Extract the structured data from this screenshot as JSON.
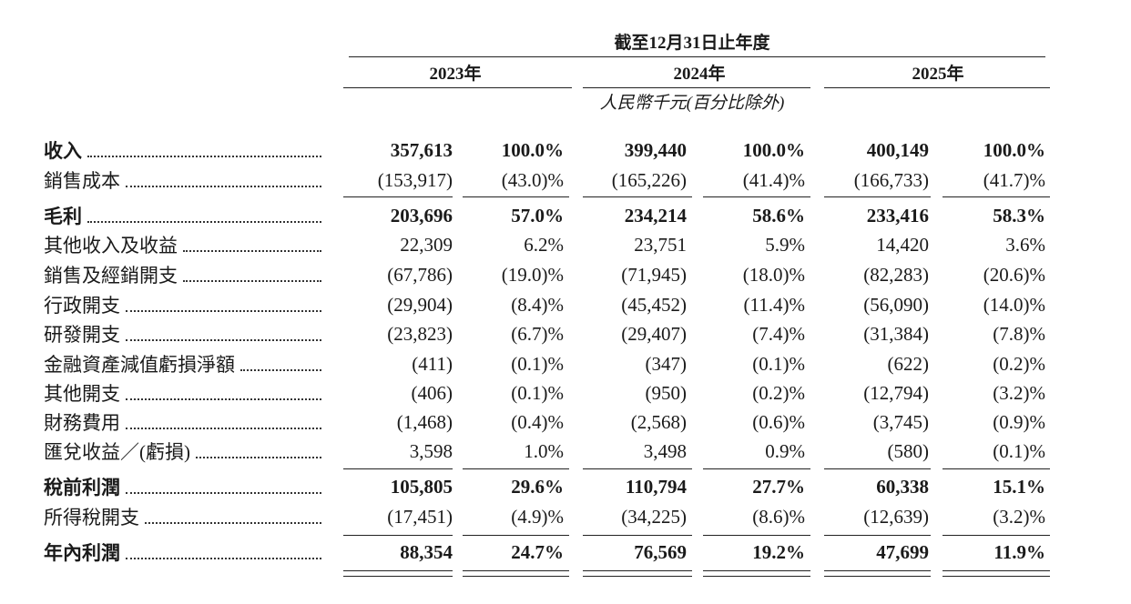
{
  "header": {
    "period": "截至12月31日止年度",
    "years": [
      "2023年",
      "2024年",
      "2025年"
    ],
    "unit": "人民幣千元(百分比除外)"
  },
  "table": {
    "rows": [
      [
        "收入",
        "357,613",
        "100.0%",
        "399,440",
        "100.0%",
        "400,149",
        "100.0%"
      ],
      [
        "銷售成本",
        "(153,917)",
        "(43.0)%",
        "(165,226)",
        "(41.4)%",
        "(166,733)",
        "(41.7)%"
      ],
      [
        "毛利",
        "203,696",
        "57.0%",
        "234,214",
        "58.6%",
        "233,416",
        "58.3%"
      ],
      [
        "其他收入及收益",
        "22,309",
        "6.2%",
        "23,751",
        "5.9%",
        "14,420",
        "3.6%"
      ],
      [
        "銷售及經銷開支",
        "(67,786)",
        "(19.0)%",
        "(71,945)",
        "(18.0)%",
        "(82,283)",
        "(20.6)%"
      ],
      [
        "行政開支",
        "(29,904)",
        "(8.4)%",
        "(45,452)",
        "(11.4)%",
        "(56,090)",
        "(14.0)%"
      ],
      [
        "研發開支",
        "(23,823)",
        "(6.7)%",
        "(29,407)",
        "(7.4)%",
        "(31,384)",
        "(7.8)%"
      ],
      [
        "金融資產減值虧損淨額",
        "(411)",
        "(0.1)%",
        "(347)",
        "(0.1)%",
        "(622)",
        "(0.2)%"
      ],
      [
        "其他開支",
        "(406)",
        "(0.1)%",
        "(950)",
        "(0.2)%",
        "(12,794)",
        "(3.2)%"
      ],
      [
        "財務費用",
        "(1,468)",
        "(0.4)%",
        "(2,568)",
        "(0.6)%",
        "(3,745)",
        "(0.9)%"
      ],
      [
        "匯兌收益／(虧損)",
        "3,598",
        "1.0%",
        "3,498",
        "0.9%",
        "(580)",
        "(0.1)%"
      ],
      [
        "稅前利潤",
        "105,805",
        "29.6%",
        "110,794",
        "27.7%",
        "60,338",
        "15.1%"
      ],
      [
        "所得稅開支",
        "(17,451)",
        "(4.9)%",
        "(34,225)",
        "(8.6)%",
        "(12,639)",
        "(3.2)%"
      ],
      [
        "年內利潤",
        "88,354",
        "24.7%",
        "76,569",
        "19.2%",
        "47,699",
        "11.9%"
      ]
    ]
  }
}
